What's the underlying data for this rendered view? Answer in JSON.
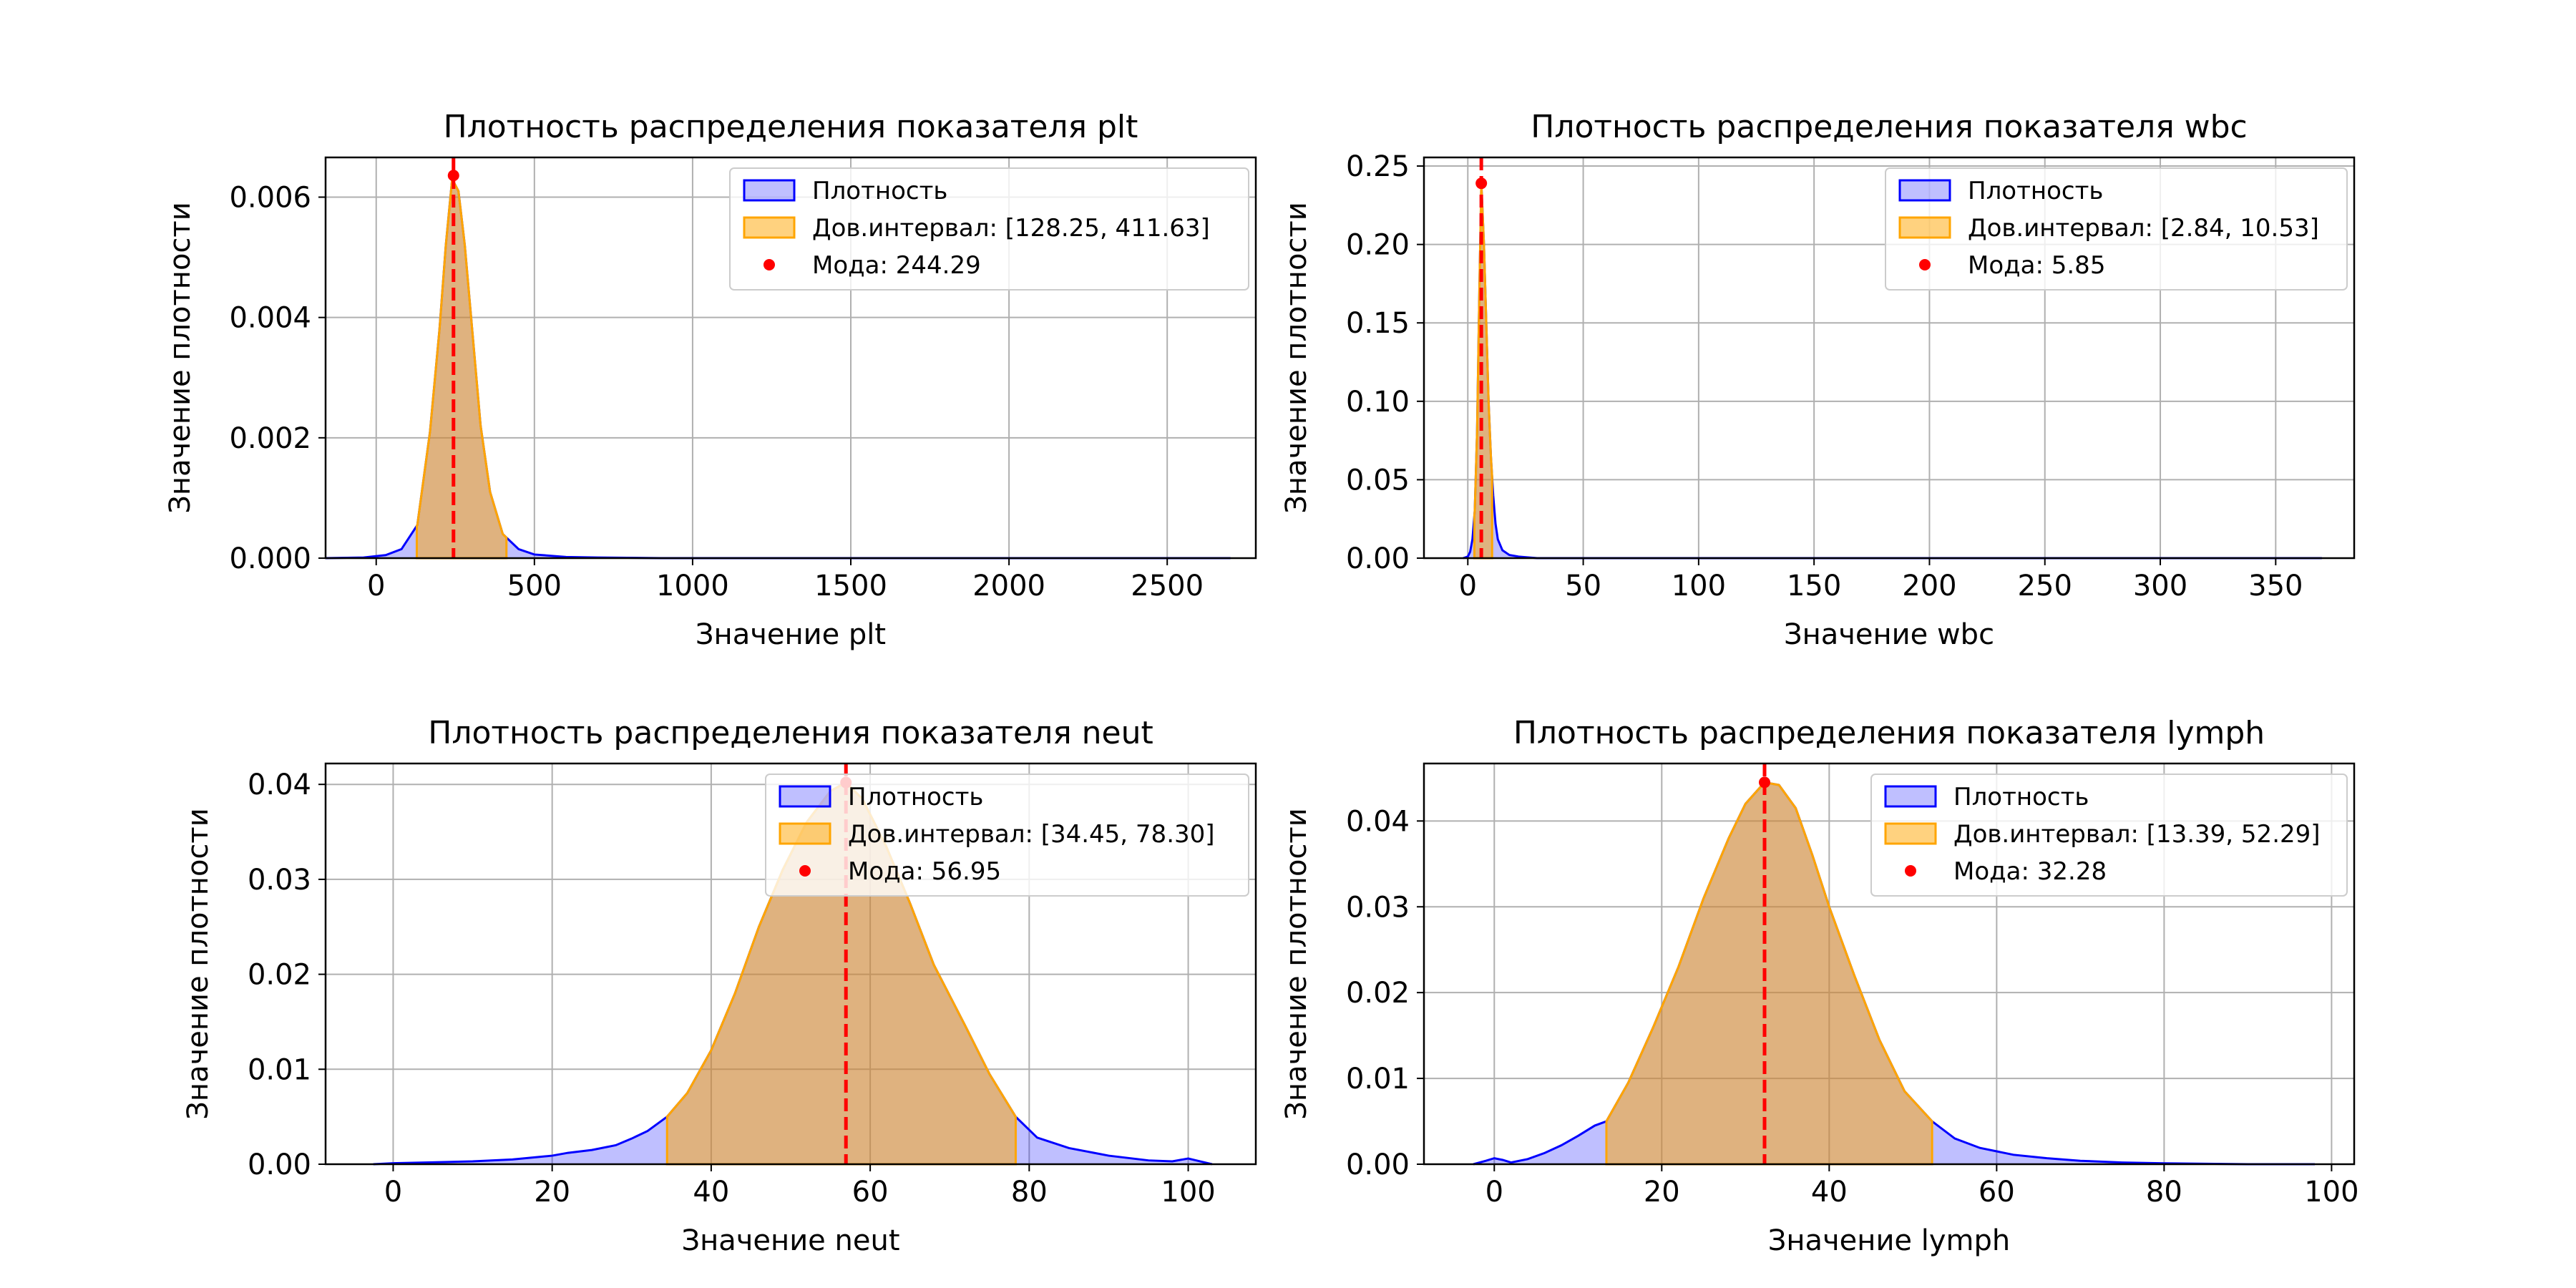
{
  "colors": {
    "density_line": "#0000ff",
    "density_fill": "#0000ff",
    "ci_line": "#ffa500",
    "ci_fill": "#ffa500",
    "mode": "#ff0000",
    "grid": "#b0b0b0"
  },
  "chart_data": [
    {
      "type": "area",
      "title": "Плотность распределения показателя plt",
      "xlabel": "Значение plt",
      "ylabel": "Значение плотности",
      "xlim": [
        -160,
        2780
      ],
      "ylim": [
        0,
        0.00666
      ],
      "xticks": [
        0,
        500,
        1000,
        1500,
        2000,
        2500
      ],
      "xtick_labels": [
        "0",
        "500",
        "1000",
        "1500",
        "2000",
        "2500"
      ],
      "yticks": [
        0,
        0.002,
        0.004,
        0.006
      ],
      "ytick_labels": [
        "0.000",
        "0.002",
        "0.004",
        "0.006"
      ],
      "grid": true,
      "legend_position": "top-right",
      "legend": {
        "density": "Плотность",
        "ci": "Дов.интервал: [128.25, 411.63]",
        "mode": "Мода: 244.29"
      },
      "ci": [
        128.25,
        411.63
      ],
      "mode": {
        "x": 244.29,
        "y": 0.00636
      },
      "density": {
        "x": [
          -160,
          -40,
          30,
          80,
          130,
          170,
          200,
          220,
          240,
          260,
          280,
          300,
          330,
          360,
          400,
          450,
          500,
          600,
          700,
          900,
          1200,
          1600,
          2000,
          2400,
          2700
        ],
        "y": [
          0,
          1e-05,
          5e-05,
          0.00015,
          0.00055,
          0.0021,
          0.0038,
          0.0052,
          0.0063,
          0.0061,
          0.0052,
          0.004,
          0.0022,
          0.0011,
          0.0004,
          0.00015,
          6e-05,
          2e-05,
          1e-05,
          0,
          0,
          0,
          0,
          0,
          0
        ]
      }
    },
    {
      "type": "area",
      "title": "Плотность распределения показателя wbc",
      "xlabel": "Значение wbc",
      "ylabel": "Значение плотности",
      "xlim": [
        -19,
        384
      ],
      "ylim": [
        0,
        0.2555
      ],
      "xticks": [
        0,
        50,
        100,
        150,
        200,
        250,
        300,
        350
      ],
      "xtick_labels": [
        "0",
        "50",
        "100",
        "150",
        "200",
        "250",
        "300",
        "350"
      ],
      "yticks": [
        0,
        0.05,
        0.1,
        0.15,
        0.2,
        0.25
      ],
      "ytick_labels": [
        "0.00",
        "0.05",
        "0.10",
        "0.15",
        "0.20",
        "0.25"
      ],
      "grid": true,
      "legend_position": "top-right",
      "legend": {
        "density": "Плотность",
        "ci": "Дов.интервал: [2.84, 10.53]",
        "mode": "Мода: 5.85"
      },
      "ci": [
        2.84,
        10.53
      ],
      "mode": {
        "x": 5.85,
        "y": 0.239
      },
      "density": {
        "x": [
          -2,
          0,
          1,
          2,
          3,
          4,
          5,
          5.85,
          7,
          8,
          9,
          10,
          11,
          12,
          13,
          15,
          18,
          22,
          30,
          50,
          100,
          200,
          300,
          370
        ],
        "y": [
          0,
          0.001,
          0.004,
          0.012,
          0.03,
          0.08,
          0.17,
          0.239,
          0.2,
          0.15,
          0.1,
          0.065,
          0.04,
          0.022,
          0.012,
          0.005,
          0.002,
          0.001,
          0,
          0,
          0,
          0,
          0,
          0
        ]
      }
    },
    {
      "type": "area",
      "title": "Плотность распределения показателя neut",
      "xlabel": "Значение neut",
      "ylabel": "Значение плотности",
      "xlim": [
        -8.5,
        108.5
      ],
      "ylim": [
        0,
        0.0422
      ],
      "xticks": [
        0,
        20,
        40,
        60,
        80,
        100
      ],
      "xtick_labels": [
        "0",
        "20",
        "40",
        "60",
        "80",
        "100"
      ],
      "yticks": [
        0,
        0.01,
        0.02,
        0.03,
        0.04
      ],
      "ytick_labels": [
        "0.00",
        "0.01",
        "0.02",
        "0.03",
        "0.04"
      ],
      "grid": true,
      "legend_position": "top-right",
      "legend": {
        "density": "Плотность",
        "ci": "Дов.интервал: [34.45, 78.30]",
        "mode": "Мода: 56.95"
      },
      "ci": [
        34.45,
        78.3
      ],
      "mode": {
        "x": 56.95,
        "y": 0.0402
      },
      "density": {
        "x": [
          -2.5,
          0,
          5,
          10,
          15,
          20,
          22,
          25,
          28,
          30,
          32,
          34.45,
          37,
          40,
          43,
          46,
          49,
          52,
          55,
          56.95,
          59,
          62,
          65,
          68,
          72,
          75,
          78.3,
          81,
          85,
          90,
          95,
          98,
          100,
          101,
          103
        ],
        "y": [
          0,
          0.0001,
          0.0002,
          0.0003,
          0.0005,
          0.0009,
          0.0012,
          0.0015,
          0.002,
          0.0027,
          0.0035,
          0.005,
          0.0075,
          0.012,
          0.018,
          0.025,
          0.031,
          0.036,
          0.0393,
          0.0402,
          0.0385,
          0.0335,
          0.0275,
          0.021,
          0.0145,
          0.0095,
          0.005,
          0.0028,
          0.0017,
          0.0009,
          0.0004,
          0.0003,
          0.0006,
          0.0004,
          0
        ]
      }
    },
    {
      "type": "area",
      "title": "Плотность распределения показателя lymph",
      "xlabel": "Значение lymph",
      "ylabel": "Значение плотности",
      "xlim": [
        -8.4,
        102.7
      ],
      "ylim": [
        0,
        0.0467
      ],
      "xticks": [
        0,
        20,
        40,
        60,
        80,
        100
      ],
      "xtick_labels": [
        "0",
        "20",
        "40",
        "60",
        "80",
        "100"
      ],
      "yticks": [
        0,
        0.01,
        0.02,
        0.03,
        0.04
      ],
      "ytick_labels": [
        "0.00",
        "0.01",
        "0.02",
        "0.03",
        "0.04"
      ],
      "grid": true,
      "legend_position": "top-right",
      "legend": {
        "density": "Плотность",
        "ci": "Дов.интервал: [13.39, 52.29]",
        "mode": "Мода: 32.28"
      },
      "ci": [
        13.39,
        52.29
      ],
      "mode": {
        "x": 32.28,
        "y": 0.0445
      },
      "density": {
        "x": [
          -2.5,
          -1,
          0,
          1,
          2,
          4,
          6,
          8,
          10,
          12,
          13.39,
          16,
          19,
          22,
          25,
          28,
          30,
          32.28,
          34,
          36,
          38,
          40,
          43,
          46,
          49,
          52.29,
          55,
          58,
          62,
          66,
          70,
          75,
          80,
          90,
          98
        ],
        "y": [
          0,
          0.0004,
          0.0007,
          0.0005,
          0.0002,
          0.0006,
          0.0013,
          0.0022,
          0.0033,
          0.0045,
          0.005,
          0.0095,
          0.016,
          0.023,
          0.031,
          0.038,
          0.042,
          0.0445,
          0.0442,
          0.0415,
          0.036,
          0.03,
          0.022,
          0.0145,
          0.0085,
          0.005,
          0.003,
          0.0019,
          0.0011,
          0.0007,
          0.0004,
          0.0002,
          0.0001,
          0,
          0
        ]
      }
    }
  ]
}
